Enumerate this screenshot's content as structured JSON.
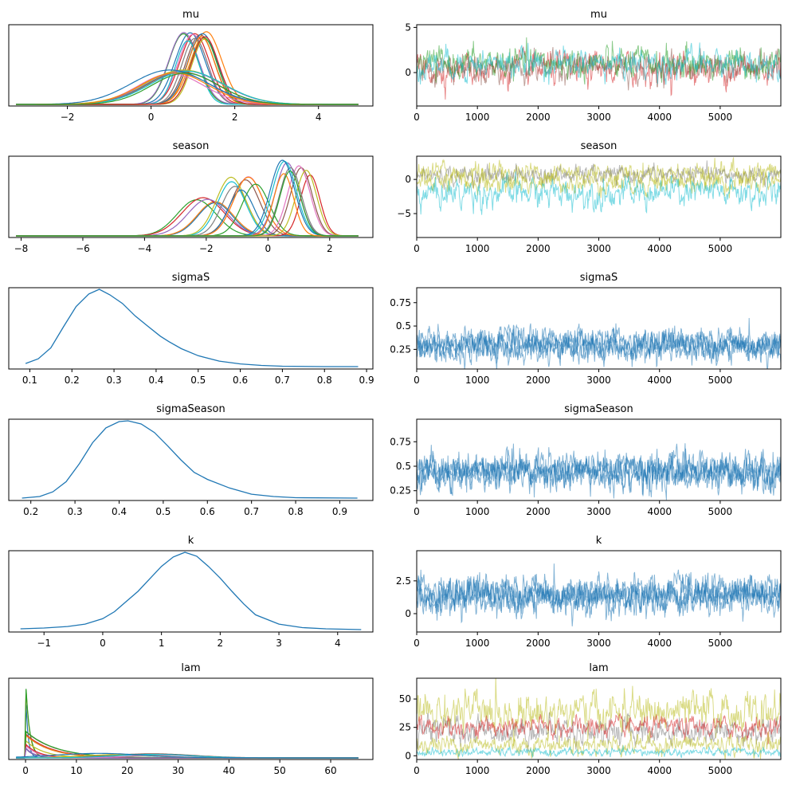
{
  "chart_data": [
    {
      "type": "line",
      "kind": "density",
      "title": "mu",
      "xlim": [
        -3.4,
        5.3
      ],
      "ylim": [
        0,
        1
      ],
      "xticks": [
        -2,
        0,
        2,
        4
      ],
      "yticks": [],
      "series_summary": {
        "chains": 40,
        "clusters": [
          {
            "count": 14,
            "mean": [
              0.75,
              1.35
            ],
            "sd": [
              0.28,
              0.4
            ],
            "peak": [
              0.8,
              0.98
            ]
          },
          {
            "count": 9,
            "mean": [
              0.35,
              0.9
            ],
            "sd": [
              0.75,
              0.95
            ],
            "peak": [
              0.38,
              0.45
            ]
          }
        ]
      }
    },
    {
      "type": "line",
      "kind": "trace",
      "title": "mu",
      "xlim": [
        0,
        5999
      ],
      "ylim": [
        -3.7,
        5.3
      ],
      "xticks": [
        0,
        1000,
        2000,
        3000,
        4000,
        5000
      ],
      "yticks": [
        0,
        5
      ],
      "bands": [
        {
          "center": 0.4,
          "spread": 1.2,
          "color": "#d62728"
        },
        {
          "center": 0.6,
          "spread": 1.1,
          "color": "#8c564b"
        },
        {
          "center": 1.0,
          "spread": 1.2,
          "color": "#2ca02c"
        },
        {
          "center": 1.0,
          "spread": 1.1,
          "color": "#17becf"
        }
      ]
    },
    {
      "type": "line",
      "kind": "density",
      "title": "season",
      "xlim": [
        -8.4,
        3.4
      ],
      "ylim": [
        0,
        1
      ],
      "xticks": [
        -8,
        -6,
        -4,
        -2,
        0,
        2
      ],
      "yticks": [],
      "series_summary": {
        "chains": 40,
        "clusters": [
          {
            "count": 5,
            "mean": [
              -2.8,
              -1.5
            ],
            "sd": [
              0.55,
              0.7
            ],
            "peak": [
              0.42,
              0.5
            ]
          },
          {
            "count": 8,
            "mean": [
              -1.2,
              0.0
            ],
            "sd": [
              0.4,
              0.5
            ],
            "peak": [
              0.55,
              0.8
            ]
          },
          {
            "count": 10,
            "mean": [
              0.2,
              1.6
            ],
            "sd": [
              0.3,
              0.4
            ],
            "peak": [
              0.75,
              0.98
            ]
          }
        ]
      }
    },
    {
      "type": "line",
      "kind": "trace",
      "title": "season",
      "xlim": [
        0,
        5999
      ],
      "ylim": [
        -8.5,
        3.4
      ],
      "xticks": [
        0,
        1000,
        2000,
        3000,
        4000,
        5000
      ],
      "yticks": [
        -5,
        0
      ],
      "bands": [
        {
          "center": 1.0,
          "spread": 1.1,
          "color": "#bcbd22"
        },
        {
          "center": 0.6,
          "spread": 0.9,
          "color": "#7f7f7f"
        },
        {
          "center": -0.4,
          "spread": 1.1,
          "color": "#bcbd22"
        },
        {
          "center": -2.0,
          "spread": 1.5,
          "color": "#17becf"
        }
      ]
    },
    {
      "type": "line",
      "kind": "density",
      "title": "sigmaS",
      "xlim": [
        0.05,
        0.915
      ],
      "ylim": [
        0,
        1
      ],
      "xticks": [
        0.1,
        0.2,
        0.3,
        0.4,
        0.5,
        0.6,
        0.7,
        0.8,
        0.9
      ],
      "yticks": [],
      "x": [
        0.09,
        0.12,
        0.15,
        0.18,
        0.21,
        0.24,
        0.265,
        0.29,
        0.32,
        0.35,
        0.38,
        0.41,
        0.43,
        0.46,
        0.5,
        0.55,
        0.6,
        0.65,
        0.7,
        0.8,
        0.88
      ],
      "y": [
        0.05,
        0.11,
        0.25,
        0.52,
        0.78,
        0.94,
        1.0,
        0.93,
        0.82,
        0.66,
        0.53,
        0.4,
        0.33,
        0.24,
        0.15,
        0.08,
        0.045,
        0.025,
        0.015,
        0.01,
        0.01
      ]
    },
    {
      "type": "line",
      "kind": "trace",
      "title": "sigmaS",
      "xlim": [
        0,
        5999
      ],
      "ylim": [
        0.04,
        0.91
      ],
      "xticks": [
        0,
        1000,
        2000,
        3000,
        4000,
        5000
      ],
      "yticks": [
        0.25,
        0.5,
        0.75
      ],
      "bands": [
        {
          "center": 0.29,
          "spread": 0.11,
          "color": "#1f77b4"
        },
        {
          "center": 0.3,
          "spread": 0.09,
          "color": "#1f77b4"
        },
        {
          "center": 0.28,
          "spread": 0.12,
          "color": "#1f77b4"
        },
        {
          "center": 0.31,
          "spread": 0.1,
          "color": "#1f77b4"
        }
      ]
    },
    {
      "type": "line",
      "kind": "density",
      "title": "sigmaSeason",
      "xlim": [
        0.15,
        0.975
      ],
      "ylim": [
        0,
        1
      ],
      "xticks": [
        0.2,
        0.3,
        0.4,
        0.5,
        0.6,
        0.7,
        0.8,
        0.9
      ],
      "yticks": [],
      "x": [
        0.18,
        0.22,
        0.25,
        0.28,
        0.31,
        0.34,
        0.37,
        0.4,
        0.42,
        0.45,
        0.48,
        0.51,
        0.54,
        0.57,
        0.6,
        0.65,
        0.7,
        0.75,
        0.8,
        0.94
      ],
      "y": [
        0.01,
        0.03,
        0.09,
        0.22,
        0.45,
        0.72,
        0.91,
        0.99,
        1.0,
        0.96,
        0.85,
        0.68,
        0.5,
        0.34,
        0.25,
        0.14,
        0.06,
        0.03,
        0.015,
        0.01
      ]
    },
    {
      "type": "line",
      "kind": "trace",
      "title": "sigmaSeason",
      "xlim": [
        0,
        5999
      ],
      "ylim": [
        0.15,
        0.98
      ],
      "xticks": [
        0,
        1000,
        2000,
        3000,
        4000,
        5000
      ],
      "yticks": [
        0.25,
        0.5,
        0.75
      ],
      "bands": [
        {
          "center": 0.45,
          "spread": 0.12,
          "color": "#1f77b4"
        },
        {
          "center": 0.44,
          "spread": 0.1,
          "color": "#1f77b4"
        },
        {
          "center": 0.46,
          "spread": 0.13,
          "color": "#1f77b4"
        },
        {
          "center": 0.43,
          "spread": 0.11,
          "color": "#1f77b4"
        }
      ]
    },
    {
      "type": "line",
      "kind": "density",
      "title": "k",
      "xlim": [
        -1.6,
        4.6
      ],
      "ylim": [
        0,
        1
      ],
      "xticks": [
        -1,
        0,
        1,
        2,
        3,
        4
      ],
      "yticks": [],
      "x": [
        -1.4,
        -1.0,
        -0.6,
        -0.3,
        0.0,
        0.2,
        0.4,
        0.6,
        0.8,
        1.0,
        1.2,
        1.4,
        1.6,
        1.8,
        2.0,
        2.2,
        2.4,
        2.6,
        3.0,
        3.4,
        3.8,
        4.4
      ],
      "y": [
        0.02,
        0.03,
        0.05,
        0.08,
        0.15,
        0.24,
        0.37,
        0.5,
        0.66,
        0.82,
        0.94,
        1.0,
        0.95,
        0.82,
        0.67,
        0.5,
        0.34,
        0.2,
        0.08,
        0.035,
        0.02,
        0.01
      ]
    },
    {
      "type": "line",
      "kind": "trace",
      "title": "k",
      "xlim": [
        0,
        5999
      ],
      "ylim": [
        -1.4,
        4.8
      ],
      "xticks": [
        0,
        1000,
        2000,
        3000,
        4000,
        5000
      ],
      "yticks": [
        0,
        2.5
      ],
      "bands": [
        {
          "center": 1.4,
          "spread": 0.9,
          "color": "#1f77b4"
        },
        {
          "center": 1.5,
          "spread": 0.8,
          "color": "#1f77b4"
        },
        {
          "center": 1.3,
          "spread": 1.0,
          "color": "#1f77b4"
        },
        {
          "center": 1.4,
          "spread": 0.85,
          "color": "#1f77b4"
        }
      ]
    },
    {
      "type": "line",
      "kind": "density",
      "title": "lam",
      "xlim": [
        -3.3,
        68.3
      ],
      "ylim": [
        0,
        1
      ],
      "xticks": [
        0,
        10,
        20,
        30,
        40,
        50,
        60
      ],
      "yticks": [],
      "series_summary": {
        "chains": 40,
        "clusters": [
          {
            "count": 3,
            "scale": [
              0.3,
              0.8
            ],
            "peak": [
              0.75,
              1.0
            ]
          },
          {
            "count": 12,
            "scale": [
              1.5,
              6.0
            ],
            "peak": [
              0.12,
              0.35
            ]
          },
          {
            "count": 6,
            "mean": [
              14,
              30
            ],
            "sd": [
              6,
              9
            ],
            "peak": [
              0.03,
              0.06
            ]
          }
        ]
      }
    },
    {
      "type": "line",
      "kind": "trace",
      "title": "lam",
      "xlim": [
        0,
        5999
      ],
      "ylim": [
        -3.3,
        68.3
      ],
      "xticks": [
        0,
        1000,
        2000,
        3000,
        4000,
        5000
      ],
      "yticks": [
        0,
        25,
        50
      ],
      "bands": [
        {
          "center": 38,
          "spread": 12,
          "color": "#bcbd22"
        },
        {
          "center": 22,
          "spread": 8,
          "color": "#7f7f7f"
        },
        {
          "center": 25,
          "spread": 6,
          "color": "#d62728"
        },
        {
          "center": 10,
          "spread": 6,
          "color": "#bcbd22"
        },
        {
          "center": 3,
          "spread": 2.5,
          "color": "#17becf"
        }
      ]
    }
  ],
  "palette": [
    "#1f77b4",
    "#ff7f0e",
    "#2ca02c",
    "#d62728",
    "#9467bd",
    "#8c564b",
    "#e377c2",
    "#7f7f7f",
    "#bcbd22",
    "#17becf"
  ]
}
